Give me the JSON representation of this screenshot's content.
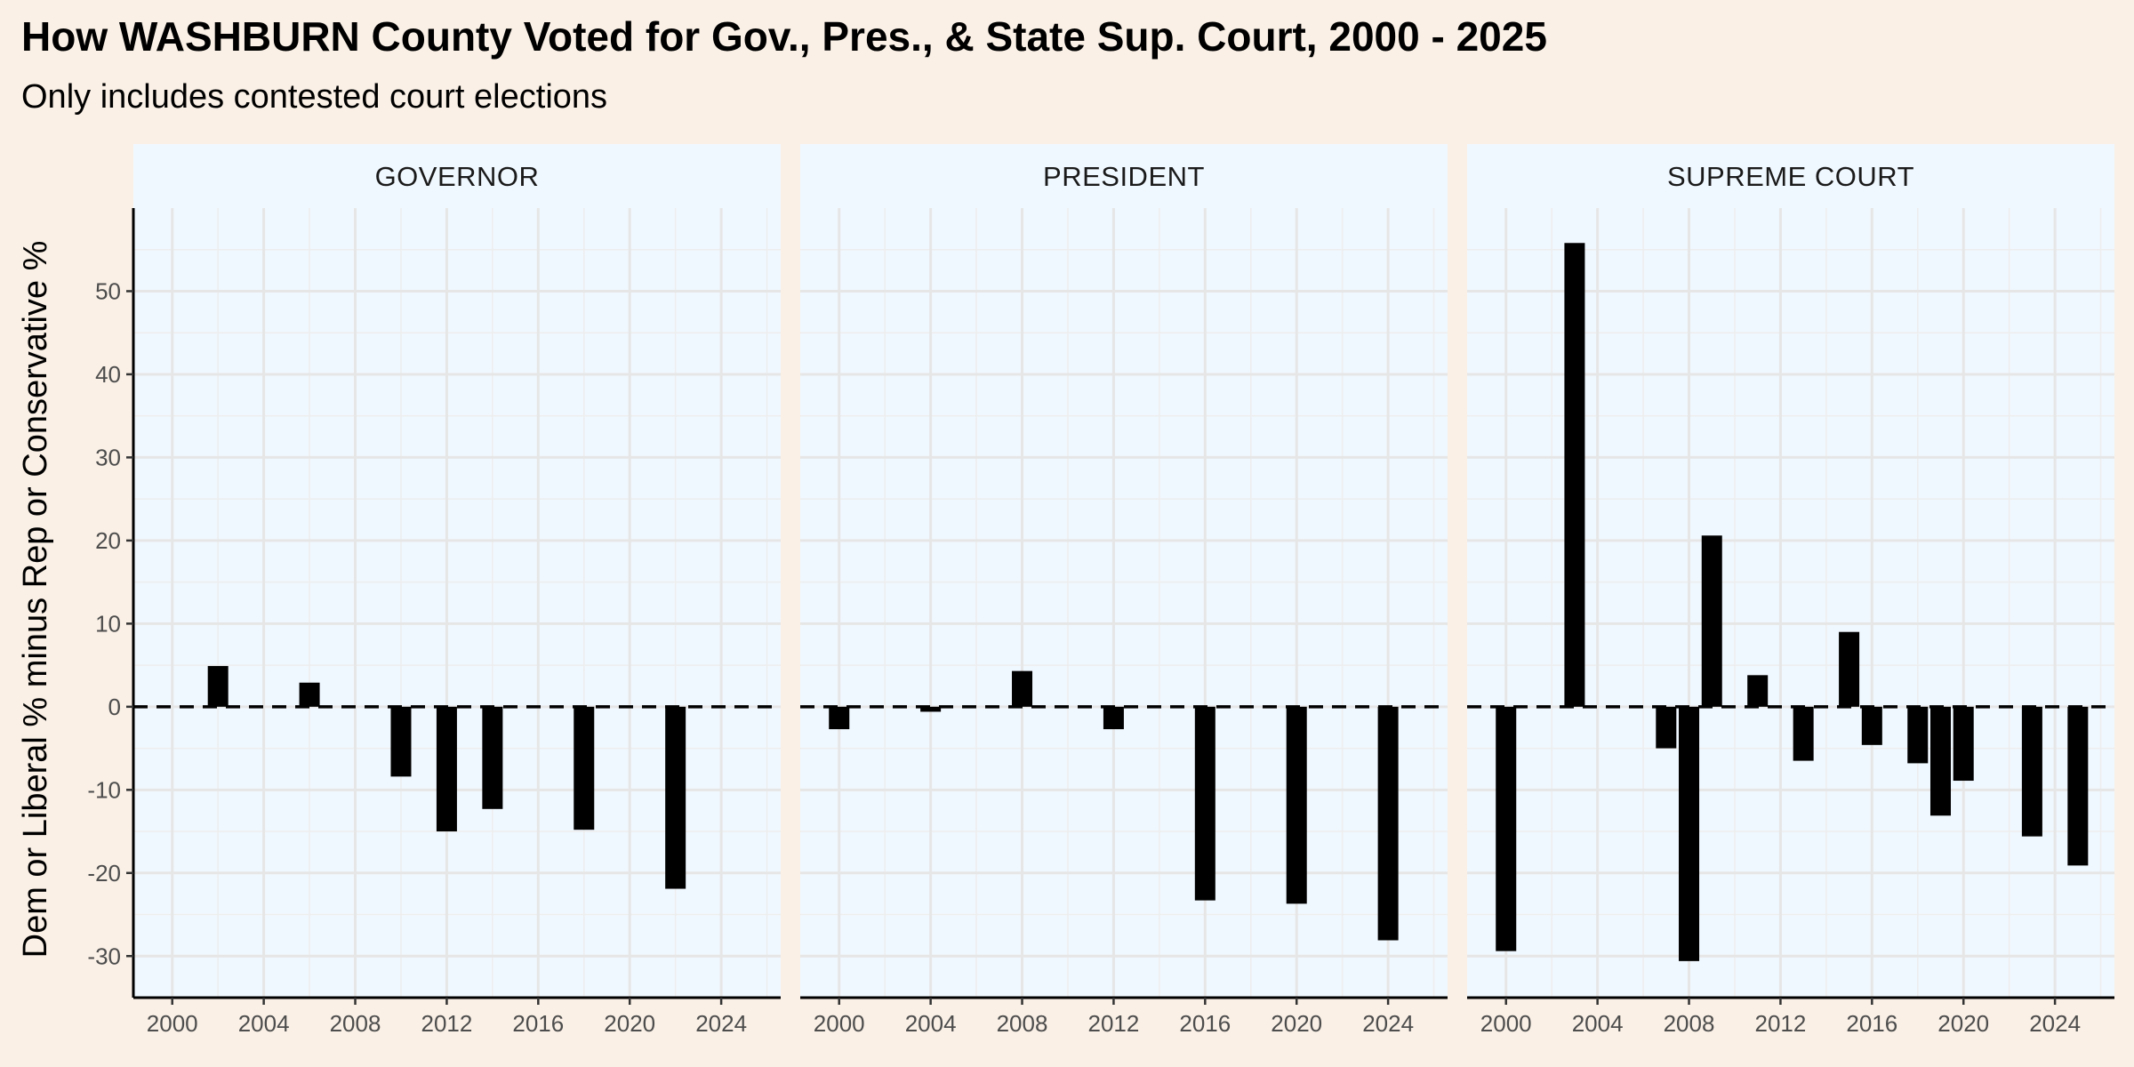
{
  "chart_data": {
    "type": "bar",
    "title": "How WASHBURN County Voted for Gov., Pres., & State Sup. Court, 2000 - 2025",
    "subtitle": "Only includes contested court elections",
    "ylabel": "Dem or Liberal % minus Rep or Conservative %",
    "xlabel": "",
    "xlim": [
      1998.3,
      2026.6
    ],
    "ylim": [
      -35,
      60
    ],
    "x_ticks": [
      2000,
      2004,
      2008,
      2012,
      2016,
      2020,
      2024
    ],
    "y_ticks": [
      -30,
      -20,
      -10,
      0,
      10,
      20,
      30,
      40,
      50
    ],
    "reference_line": 0,
    "grid": true,
    "bar_color": "#000000",
    "panel_background": "#f0f8ff",
    "page_background": "#faf0e6",
    "grid_color": "#e6e6e6",
    "panels": [
      {
        "label": "GOVERNOR",
        "x": [
          2002,
          2006,
          2010,
          2012,
          2014,
          2018,
          2022
        ],
        "values": [
          4.9,
          2.9,
          -8.4,
          -15.0,
          -12.3,
          -14.8,
          -21.9
        ]
      },
      {
        "label": "PRESIDENT",
        "x": [
          2000,
          2004,
          2008,
          2012,
          2016,
          2020,
          2024
        ],
        "values": [
          -2.7,
          -0.6,
          4.3,
          -2.7,
          -23.3,
          -23.7,
          -28.1
        ]
      },
      {
        "label": "SUPREME COURT",
        "x": [
          2000,
          2003,
          2007,
          2008,
          2009,
          2011,
          2013,
          2015,
          2016,
          2018,
          2019,
          2020,
          2023,
          2025
        ],
        "values": [
          -29.4,
          55.8,
          -5.0,
          -30.6,
          20.6,
          3.8,
          -6.5,
          9.0,
          -4.6,
          -6.8,
          -13.1,
          -8.9,
          -15.6,
          -19.1
        ]
      }
    ]
  }
}
